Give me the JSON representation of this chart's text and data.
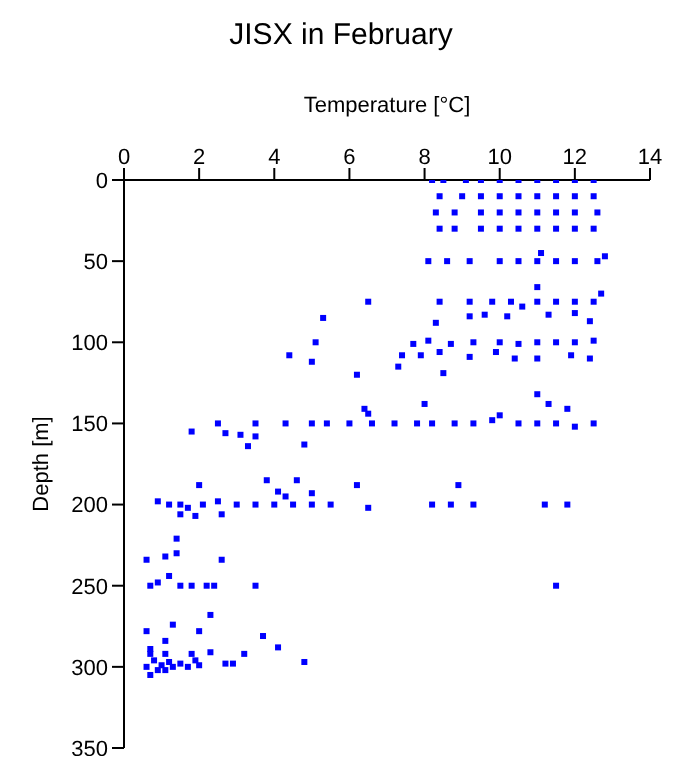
{
  "chart_data": {
    "type": "scatter",
    "title": "JISX in February",
    "xlabel": "Temperature [°C]",
    "ylabel": "Depth [m]",
    "color": "#0000ff",
    "marker": "square",
    "xlim": [
      0,
      14
    ],
    "xticks": [
      0,
      2,
      4,
      6,
      8,
      10,
      12,
      14
    ],
    "ylim": [
      350,
      0
    ],
    "yticks": [
      0,
      50,
      100,
      150,
      200,
      250,
      300,
      350
    ],
    "x": [
      8.2,
      8.5,
      9.1,
      9.5,
      10,
      10.5,
      11,
      11.5,
      12,
      12.5,
      8.4,
      9,
      9.5,
      10,
      10.5,
      11,
      11.5,
      12,
      12.5,
      8.3,
      8.8,
      9.5,
      10,
      10.5,
      11,
      11.5,
      12,
      12.6,
      8.4,
      8.8,
      9.5,
      10,
      10.5,
      11,
      11.5,
      12,
      12.5,
      8.1,
      8.6,
      9.2,
      10,
      10.5,
      11,
      11.5,
      12,
      12.6,
      12.8,
      11.1,
      6.5,
      8.4,
      9.2,
      9.8,
      10.3,
      11,
      11.5,
      12,
      12.5,
      12.7,
      11,
      5.3,
      9.6,
      10.2,
      11.3,
      12,
      12.4,
      8.3,
      9.2,
      10.6,
      5.1,
      7.7,
      8.1,
      8.7,
      9.3,
      10,
      10.5,
      11,
      11.5,
      12,
      12.5,
      4.4,
      5,
      7.4,
      7.9,
      8.4,
      9.2,
      9.9,
      10.4,
      11,
      11.9,
      12.4,
      7.3,
      8.5,
      6.2,
      11,
      11.3,
      11.8,
      8,
      6.4,
      6.5,
      10,
      1.8,
      2.5,
      2.7,
      3.1,
      3.5,
      4.3,
      5,
      5.4,
      6,
      6.6,
      7.2,
      7.8,
      8.2,
      8.8,
      9.3,
      9.8,
      10.5,
      11,
      11.5,
      12,
      12.5,
      3.3,
      4.8,
      3.5,
      0.9,
      1.2,
      1.5,
      1.7,
      2.1,
      2.5,
      3,
      3.5,
      4,
      4.5,
      5,
      5.5,
      6.5,
      8.2,
      8.7,
      9.3,
      2,
      3.8,
      4.6,
      4.1,
      5,
      6.2,
      8.9,
      1.5,
      1.9,
      2.6,
      4.3,
      11.2,
      11.8,
      11.5,
      1.4,
      1.4,
      1.1,
      0.6,
      2.6,
      0.9,
      1.2,
      1.5,
      1.8,
      2.2,
      2.4,
      3.5,
      0.7,
      2.3,
      1.3,
      2,
      0.6,
      3.7,
      4.1,
      1.1,
      0.7,
      2.3,
      3.2,
      0.6,
      0.7,
      0.8,
      0.9,
      1,
      1.1,
      1.2,
      1.3,
      1.5,
      1.7,
      2,
      1.9,
      2.7,
      2.9,
      4.8,
      1.8,
      1.1,
      0.7
    ],
    "values": [
      0,
      0,
      0,
      0,
      0,
      0,
      0,
      0,
      0,
      0,
      10,
      10,
      10,
      10,
      10,
      10,
      10,
      10,
      10,
      20,
      20,
      20,
      20,
      20,
      20,
      20,
      20,
      20,
      30,
      30,
      30,
      30,
      30,
      30,
      30,
      30,
      30,
      50,
      50,
      50,
      50,
      50,
      50,
      50,
      50,
      50,
      47,
      45,
      75,
      75,
      75,
      75,
      75,
      75,
      75,
      75,
      75,
      70,
      66,
      85,
      83,
      84,
      83,
      82,
      87,
      88,
      84,
      78,
      100,
      101,
      99,
      101,
      100,
      100,
      101,
      100,
      100,
      100,
      99,
      108,
      112,
      108,
      108,
      106,
      109,
      106,
      110,
      110,
      108,
      110,
      115,
      119,
      120,
      132,
      138,
      141,
      138,
      141,
      144,
      145,
      155,
      150,
      156,
      157,
      150,
      150,
      150,
      150,
      150,
      150,
      150,
      150,
      150,
      150,
      150,
      148,
      150,
      150,
      150,
      152,
      150,
      164,
      163,
      158,
      198,
      200,
      200,
      202,
      200,
      198,
      200,
      200,
      200,
      200,
      200,
      200,
      202,
      200,
      200,
      200,
      188,
      185,
      185,
      192,
      193,
      188,
      188,
      206,
      207,
      206,
      195,
      200,
      200,
      250,
      221,
      230,
      232,
      234,
      234,
      248,
      244,
      250,
      250,
      250,
      250,
      250,
      250,
      268,
      274,
      278,
      278,
      281,
      288,
      284,
      289,
      291,
      292,
      300,
      305,
      296,
      302,
      299,
      302,
      297,
      300,
      298,
      300,
      299,
      296,
      298,
      298,
      297,
      292,
      292,
      292
    ]
  }
}
